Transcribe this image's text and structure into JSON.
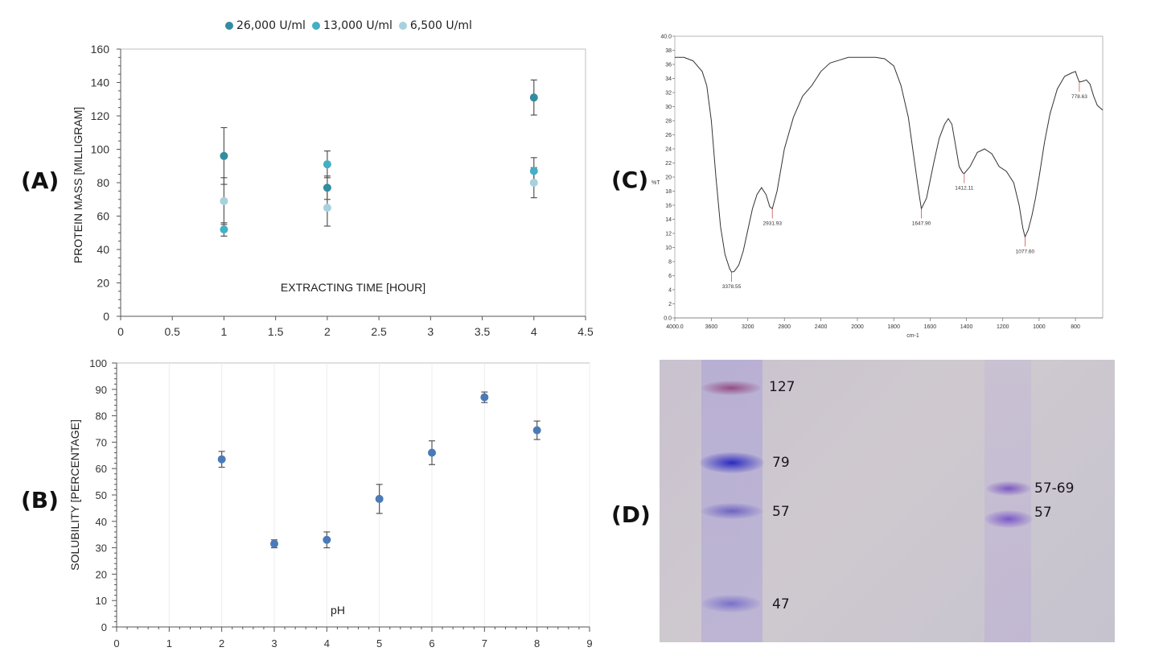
{
  "panels": {
    "a": "(A)",
    "b": "(B)",
    "c": "(C)",
    "d": "(D)"
  },
  "colors": {
    "s26000": "#318d9f",
    "s13000": "#44afc5",
    "s6500": "#a8d0dd",
    "b_points": "#4a7ab8",
    "ir_line": "#333333",
    "ir_marker": "#d05050"
  },
  "chart_data": [
    {
      "panel": "A",
      "type": "scatter",
      "title": "",
      "xlabel": "EXTRACTING TIME [HOUR]",
      "ylabel": "PROTEIN MASS [MILLIGRAM]",
      "xlim": [
        0,
        4.5
      ],
      "ylim": [
        0,
        160
      ],
      "x_ticks": [
        "0",
        "0.5",
        "1",
        "1.5",
        "2",
        "2.5",
        "3",
        "3.5",
        "4",
        "4.5"
      ],
      "y_ticks": [
        "0",
        "20",
        "40",
        "60",
        "80",
        "100",
        "120",
        "140",
        "160"
      ],
      "legend_position": "top-center",
      "grid": false,
      "series": [
        {
          "name": "26,000 U/ml",
          "x": [
            1,
            2,
            4
          ],
          "y": [
            96,
            77,
            131
          ],
          "err": [
            17,
            7,
            10.5
          ]
        },
        {
          "name": "13,000 U/ml",
          "x": [
            1,
            2,
            4
          ],
          "y": [
            52,
            91,
            87
          ],
          "err": [
            4,
            8,
            8
          ]
        },
        {
          "name": "6,500 U/ml",
          "x": [
            1,
            2,
            4
          ],
          "y": [
            69,
            65,
            80
          ],
          "err": [
            14,
            11,
            9
          ]
        }
      ]
    },
    {
      "panel": "B",
      "type": "scatter",
      "title": "",
      "xlabel": "pH",
      "ylabel": "SOLUBILITY [PERCENTAGE]",
      "xlim": [
        0,
        9
      ],
      "ylim": [
        0,
        100
      ],
      "x_ticks": [
        "0",
        "1",
        "2",
        "3",
        "4",
        "5",
        "6",
        "7",
        "8",
        "9"
      ],
      "y_ticks": [
        "0",
        "10",
        "20",
        "30",
        "40",
        "50",
        "60",
        "70",
        "80",
        "90",
        "100"
      ],
      "grid": true,
      "series": [
        {
          "x": [
            2,
            3,
            4,
            5,
            6,
            7,
            8
          ],
          "y": [
            63.5,
            31.5,
            33,
            48.5,
            66,
            87,
            74.5
          ],
          "err": [
            3,
            1.5,
            3,
            5.5,
            4.5,
            2,
            3.5
          ]
        }
      ]
    },
    {
      "panel": "C",
      "type": "line",
      "title": "",
      "xlabel": "cm-1",
      "ylabel": "%T",
      "xlim": [
        4000,
        650
      ],
      "ylim": [
        0,
        40
      ],
      "x_ticks": [
        "4000.0",
        "3600",
        "3200",
        "2800",
        "2400",
        "2000",
        "1800",
        "1600",
        "1400",
        "1200",
        "1000",
        "800"
      ],
      "y_ticks": [
        "0.0",
        "2",
        "4",
        "6",
        "8",
        "10",
        "12",
        "14",
        "16",
        "18",
        "20",
        "22",
        "24",
        "26",
        "28",
        "30",
        "32",
        "34",
        "36",
        "38",
        "40.0"
      ],
      "peaks": [
        {
          "x": 3378.55,
          "y": 6.5,
          "label": "3378.55"
        },
        {
          "x": 2931.93,
          "y": 15.5,
          "label": "2931.93"
        },
        {
          "x": 1647.9,
          "y": 15.5,
          "label": "1647.90"
        },
        {
          "x": 1412.11,
          "y": 20.5,
          "label": "1412.11"
        },
        {
          "x": 1077.6,
          "y": 11.5,
          "label": "1077.60"
        },
        {
          "x": 778.63,
          "y": 33.5,
          "label": "778.63"
        }
      ],
      "series": [
        {
          "x": [
            4000,
            3900,
            3800,
            3700,
            3650,
            3600,
            3550,
            3500,
            3450,
            3400,
            3378.55,
            3350,
            3300,
            3250,
            3200,
            3150,
            3100,
            3050,
            3000,
            2960,
            2931.93,
            2880,
            2800,
            2700,
            2600,
            2500,
            2400,
            2300,
            2200,
            2100,
            2000,
            1900,
            1850,
            1800,
            1760,
            1720,
            1690,
            1660,
            1647.9,
            1620,
            1580,
            1550,
            1520,
            1500,
            1480,
            1460,
            1440,
            1420,
            1412.11,
            1380,
            1340,
            1300,
            1260,
            1220,
            1180,
            1140,
            1110,
            1090,
            1077.6,
            1060,
            1040,
            1020,
            1000,
            970,
            940,
            900,
            860,
            820,
            800,
            790,
            778.63,
            760,
            740,
            720,
            700,
            680,
            650
          ],
          "y": [
            37,
            37,
            36.5,
            35,
            33,
            28,
            20,
            13,
            9,
            7,
            6.5,
            6.6,
            7.5,
            9.5,
            12.5,
            15.5,
            17.5,
            18.5,
            17.5,
            15.8,
            15.5,
            18,
            24,
            28.5,
            31.5,
            33,
            35,
            36.2,
            36.6,
            37,
            37,
            37,
            36.8,
            35.8,
            33,
            28.5,
            23,
            17.5,
            15.5,
            17,
            22,
            25.5,
            27.5,
            28.3,
            27.5,
            24.5,
            21.5,
            20.6,
            20.5,
            21.5,
            23.5,
            24,
            23.3,
            21.5,
            20.8,
            19.2,
            16,
            12.8,
            11.5,
            12.5,
            14.5,
            17,
            20,
            25,
            29,
            32.5,
            34.3,
            34.8,
            35,
            34.2,
            33.5,
            33.6,
            33.8,
            33.2,
            31.5,
            30.2,
            29.5
          ]
        }
      ]
    }
  ],
  "gel": {
    "marker_labels": [
      "127",
      "79",
      "57",
      "47"
    ],
    "sample_labels": [
      "57-69",
      "57"
    ]
  }
}
